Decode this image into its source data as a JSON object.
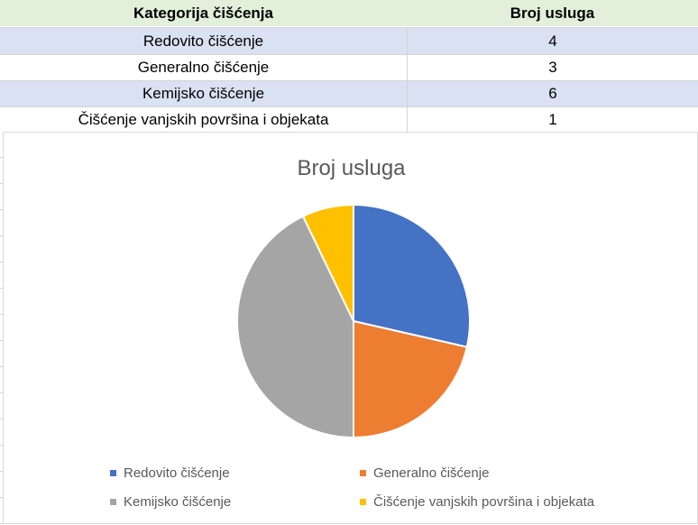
{
  "table": {
    "headers": [
      "Kategorija čišćenja",
      "Broj usluga"
    ],
    "rows": [
      {
        "category": "Redovito čišćenje",
        "count": "4"
      },
      {
        "category": "Generalno čišćenje",
        "count": "3"
      },
      {
        "category": "Kemijsko čišćenje",
        "count": "6"
      },
      {
        "category": "Čišćenje vanjskih površina i objekata",
        "count": "1"
      }
    ]
  },
  "chart_data": {
    "type": "pie",
    "title": "Broj usluga",
    "categories": [
      "Redovito čišćenje",
      "Generalno čišćenje",
      "Kemijsko čišćenje",
      "Čišćenje vanjskih površina i objekata"
    ],
    "values": [
      4,
      3,
      6,
      1
    ],
    "colors": [
      "#4472c4",
      "#ed7d31",
      "#a5a5a5",
      "#ffc000"
    ],
    "legend_position": "bottom"
  }
}
